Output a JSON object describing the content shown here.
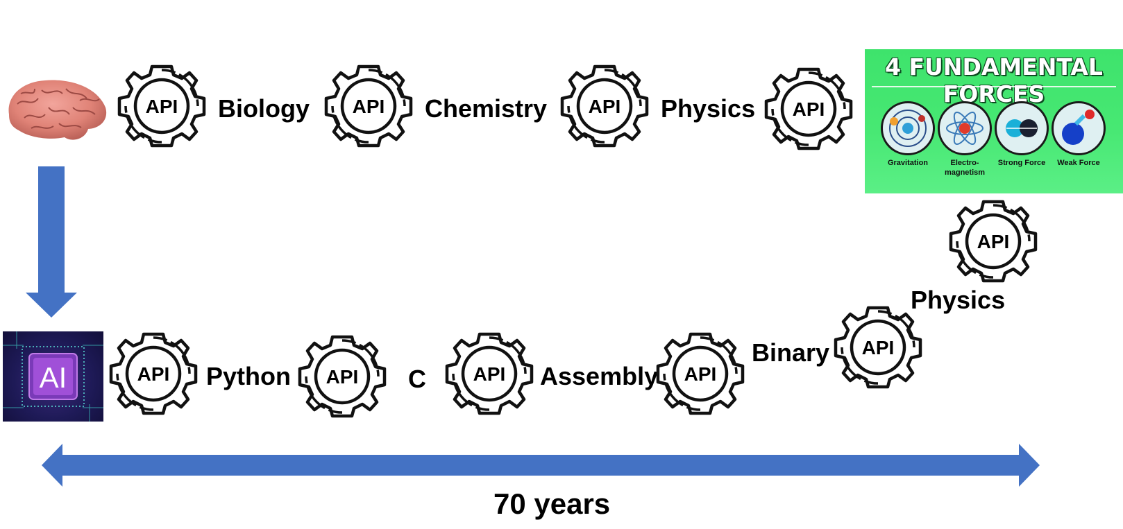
{
  "top_row": {
    "labels": [
      "Biology",
      "Chemistry",
      "Physics"
    ],
    "gear_text": "API"
  },
  "forces_panel": {
    "title": "4 FUNDAMENTAL FORCES",
    "forces": [
      "Gravitation",
      "Electro-\nmagnetism",
      "Strong Force",
      "Weak Force"
    ]
  },
  "right_column": {
    "label": "Physics"
  },
  "bottom_row": {
    "labels": [
      "Python",
      "C",
      "Assembly",
      "Binary"
    ],
    "ai_label": "AI"
  },
  "timeline": {
    "label": "70 years"
  },
  "colors": {
    "arrow": "#4472c4",
    "panel_green": "#47e873",
    "chip_purple": "#1e1a57"
  },
  "icons": [
    "brain-image",
    "api-gear-icon",
    "ai-chip-image",
    "down-arrow",
    "double-headed-arrow"
  ]
}
